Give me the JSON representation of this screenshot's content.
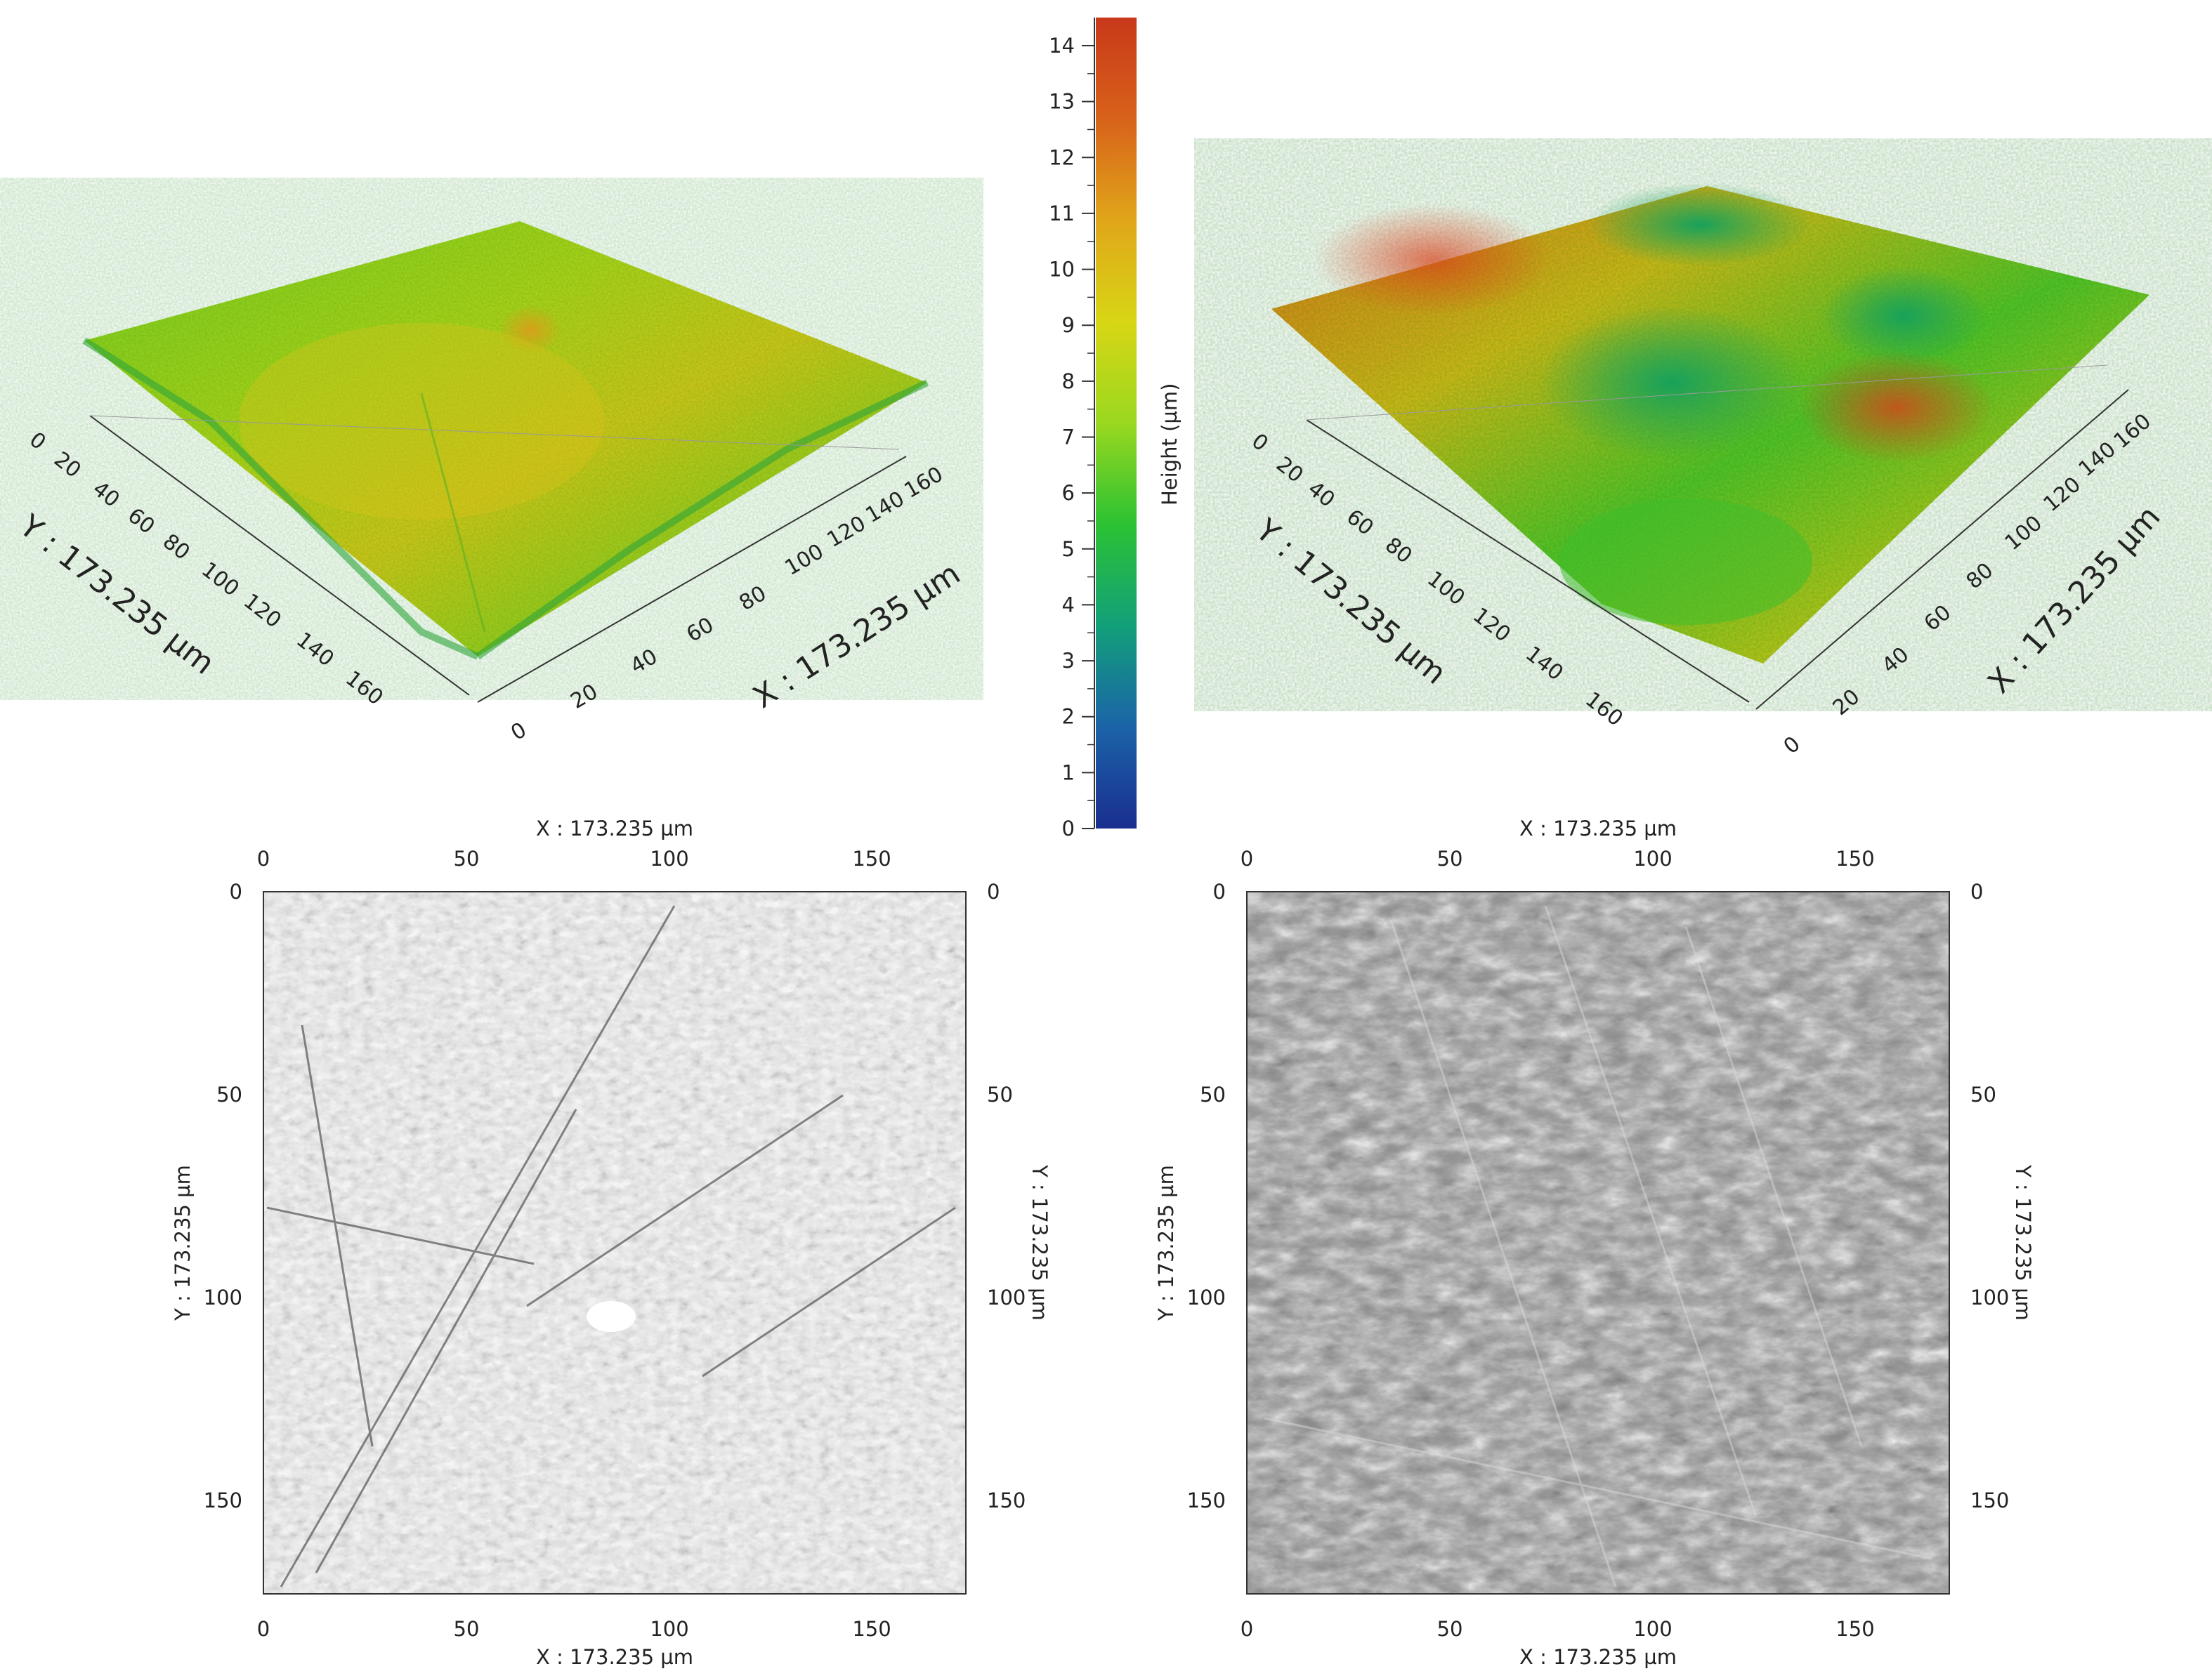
{
  "colorbar": {
    "label": "Height (µm)",
    "range": [
      0,
      14
    ],
    "ticks": [
      "0",
      "1",
      "2",
      "3",
      "4",
      "5",
      "6",
      "7",
      "8",
      "9",
      "10",
      "11",
      "12",
      "13",
      "14"
    ],
    "gradient": [
      "#1a2e8f",
      "#1b63a8",
      "#12a07a",
      "#2bc233",
      "#9ad81f",
      "#d8d615",
      "#e0a61a",
      "#d8621a",
      "#c8381a"
    ]
  },
  "surfaces": [
    {
      "x_axis_label": "X : 173.235 µm",
      "y_axis_label": "Y : 173.235 µm",
      "x_ticks": [
        "0",
        "20",
        "40",
        "60",
        "80",
        "100",
        "120",
        "140",
        "160"
      ],
      "y_ticks": [
        "0",
        "20",
        "40",
        "60",
        "80",
        "100",
        "120",
        "140",
        "160"
      ]
    },
    {
      "x_axis_label": "X : 173.235 µm",
      "y_axis_label": "Y : 173.235 µm",
      "x_ticks": [
        "0",
        "20",
        "40",
        "60",
        "80",
        "100",
        "120",
        "140",
        "160"
      ],
      "y_ticks": [
        "0",
        "20",
        "40",
        "60",
        "80",
        "100",
        "120",
        "140",
        "160"
      ]
    }
  ],
  "images": [
    {
      "x_axis_label_top": "X : 173.235 µm",
      "x_axis_label_bottom": "X : 173.235 µm",
      "y_axis_label_left": "Y : 173.235 µm",
      "y_axis_label_right": "Y : 173.235 µm",
      "x_ticks": [
        "0",
        "50",
        "100",
        "150"
      ],
      "y_ticks": [
        "0",
        "50",
        "100",
        "150"
      ]
    },
    {
      "x_axis_label_top": "X : 173.235 µm",
      "x_axis_label_bottom": "X : 173.235 µm",
      "y_axis_label_left": "Y : 173.235 µm",
      "y_axis_label_right": "Y : 173.235 µm",
      "x_ticks": [
        "0",
        "50",
        "100",
        "150"
      ],
      "y_ticks": [
        "0",
        "50",
        "100",
        "150"
      ]
    }
  ]
}
